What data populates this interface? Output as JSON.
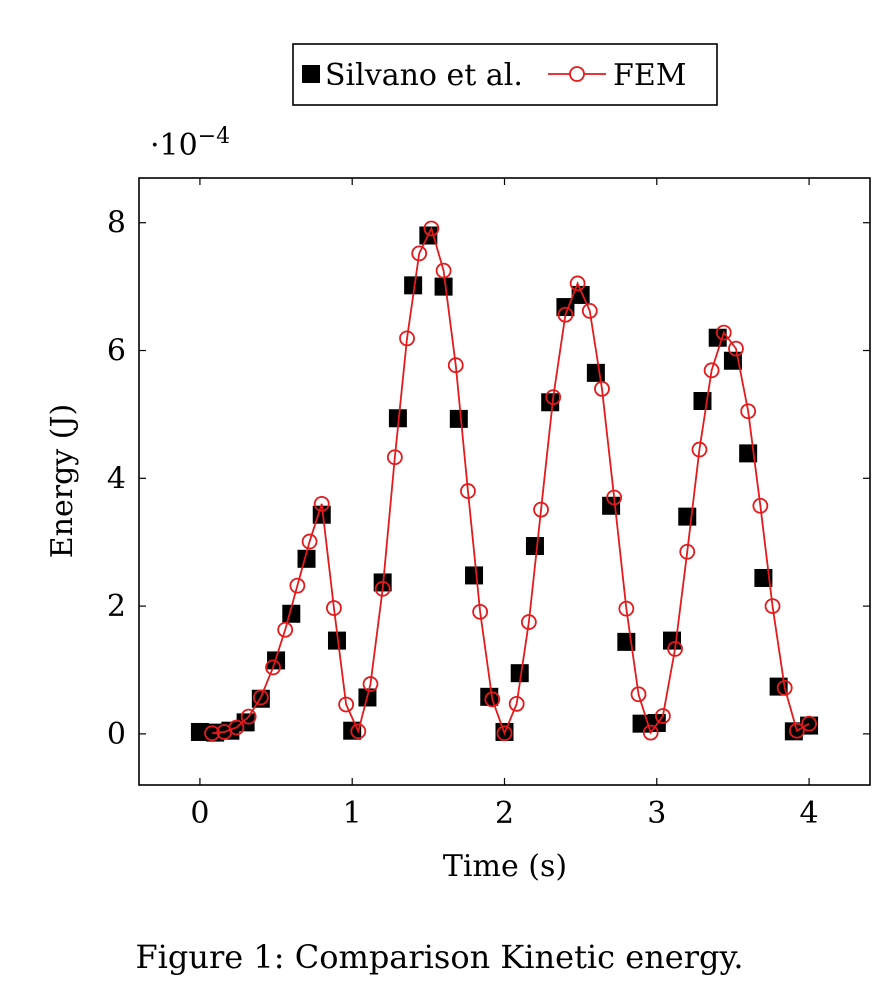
{
  "caption": "Figure 1: Comparison Kinetic energy.",
  "chart_data": {
    "type": "line",
    "xlabel": "Time (s)",
    "ylabel": "Energy (J)",
    "y_scale_factor": "·10",
    "y_scale_exponent": "−4",
    "xlim": [
      -0.4,
      4.4
    ],
    "ylim": [
      -0.8,
      8.7
    ],
    "x_ticks": [
      0,
      1,
      2,
      3,
      4
    ],
    "x_tick_labels": [
      "0",
      "1",
      "2",
      "3",
      "4"
    ],
    "y_ticks": [
      0,
      2,
      4,
      6,
      8
    ],
    "y_tick_labels": [
      "0",
      "2",
      "4",
      "6",
      "8"
    ],
    "grid": false,
    "legend_position": "top-center",
    "series": [
      {
        "name": "Silvano et al.",
        "marker": "square",
        "color": "#000000",
        "line": false,
        "x": [
          0.0,
          0.1,
          0.2,
          0.3,
          0.4,
          0.5,
          0.6,
          0.7,
          0.8,
          0.9,
          1.0,
          1.1,
          1.2,
          1.3,
          1.4,
          1.5,
          1.6,
          1.7,
          1.8,
          1.9,
          2.0,
          2.1,
          2.2,
          2.3,
          2.4,
          2.5,
          2.6,
          2.7,
          2.8,
          2.9,
          3.0,
          3.1,
          3.2,
          3.3,
          3.4,
          3.5,
          3.6,
          3.7,
          3.8,
          3.9,
          4.0
        ],
        "y": [
          0.03,
          0.02,
          0.05,
          0.18,
          0.55,
          1.15,
          1.88,
          2.74,
          3.43,
          1.46,
          0.05,
          0.57,
          2.37,
          4.94,
          7.02,
          7.8,
          7.0,
          4.93,
          2.48,
          0.58,
          0.03,
          0.95,
          2.94,
          5.19,
          6.68,
          6.87,
          5.65,
          3.57,
          1.44,
          0.16,
          0.17,
          1.46,
          3.4,
          5.21,
          6.2,
          5.84,
          4.39,
          2.44,
          0.74,
          0.04,
          0.13
        ]
      },
      {
        "name": "FEM",
        "marker": "circle",
        "color": "#e41a1c",
        "line": true,
        "x": [
          0.08,
          0.16,
          0.24,
          0.32,
          0.4,
          0.48,
          0.56,
          0.64,
          0.72,
          0.8,
          0.88,
          0.96,
          1.04,
          1.12,
          1.2,
          1.28,
          1.36,
          1.44,
          1.52,
          1.6,
          1.68,
          1.76,
          1.84,
          1.92,
          2.0,
          2.08,
          2.16,
          2.24,
          2.32,
          2.4,
          2.48,
          2.56,
          2.64,
          2.72,
          2.8,
          2.88,
          2.96,
          3.04,
          3.12,
          3.2,
          3.28,
          3.36,
          3.44,
          3.52,
          3.6,
          3.68,
          3.76,
          3.84,
          3.92,
          4.0
        ],
        "y": [
          0.01,
          0.03,
          0.1,
          0.27,
          0.57,
          1.04,
          1.63,
          2.32,
          3.01,
          3.6,
          1.97,
          0.46,
          0.04,
          0.78,
          2.27,
          4.33,
          6.19,
          7.52,
          7.91,
          7.25,
          5.77,
          3.8,
          1.91,
          0.54,
          0.01,
          0.47,
          1.75,
          3.51,
          5.27,
          6.56,
          7.05,
          6.62,
          5.4,
          3.7,
          1.96,
          0.62,
          0.02,
          0.28,
          1.33,
          2.85,
          4.45,
          5.69,
          6.28,
          6.03,
          5.05,
          3.57,
          2.0,
          0.72,
          0.05,
          0.16
        ]
      }
    ]
  }
}
